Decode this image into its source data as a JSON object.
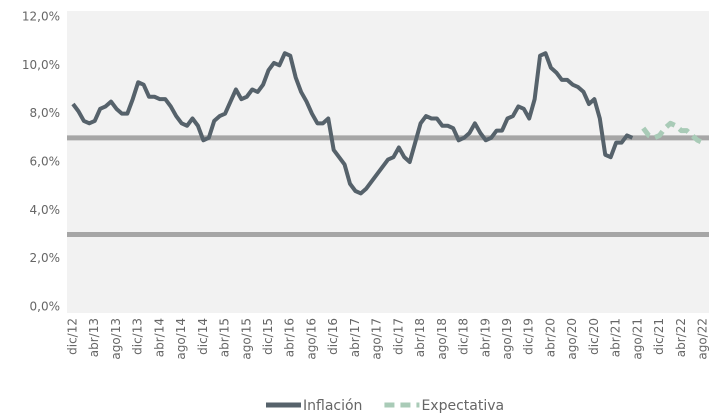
{
  "chart_data": {
    "type": "line",
    "categories": [
      "dic/12",
      null,
      null,
      null,
      "abr/13",
      null,
      null,
      null,
      "ago/13",
      null,
      null,
      null,
      "dic/13",
      null,
      null,
      null,
      "abr/14",
      null,
      null,
      null,
      "ago/14",
      null,
      null,
      null,
      "dic/14",
      null,
      null,
      null,
      "abr/15",
      null,
      null,
      null,
      "ago/15",
      null,
      null,
      null,
      "dic/15",
      null,
      null,
      null,
      "abr/16",
      null,
      null,
      null,
      "ago/16",
      null,
      null,
      null,
      "dic/16",
      null,
      null,
      null,
      "abr/17",
      null,
      null,
      null,
      "ago/17",
      null,
      null,
      null,
      "dic/17",
      null,
      null,
      null,
      "abr/18",
      null,
      null,
      null,
      "ago/18",
      null,
      null,
      null,
      "dic/18",
      null,
      null,
      null,
      "abr/19",
      null,
      null,
      null,
      "ago/19",
      null,
      null,
      null,
      "dic/19",
      null,
      null,
      null,
      "abr/20",
      null,
      null,
      null,
      "ago/20",
      null,
      null,
      null,
      "dic/20",
      null,
      null,
      null,
      "abr/21",
      null,
      null,
      null,
      "ago/21",
      null,
      null,
      null,
      "dic/21",
      null,
      null,
      null,
      "abr/22",
      null,
      null,
      null,
      "ago/22"
    ],
    "series": [
      {
        "name": "Inflación",
        "color": "#56626b",
        "dashed": false,
        "values": [
          8.4,
          8.1,
          7.7,
          7.6,
          7.7,
          8.2,
          8.3,
          8.5,
          8.2,
          8.0,
          8.0,
          8.6,
          9.3,
          9.2,
          8.7,
          8.7,
          8.6,
          8.6,
          8.3,
          7.9,
          7.6,
          7.5,
          7.8,
          7.5,
          6.9,
          7.0,
          7.7,
          7.9,
          8.0,
          8.5,
          9.0,
          8.6,
          8.7,
          9.0,
          8.9,
          9.2,
          9.8,
          10.1,
          10.0,
          10.5,
          10.4,
          9.5,
          8.9,
          8.5,
          8.0,
          7.6,
          7.6,
          7.8,
          6.5,
          6.2,
          5.9,
          5.1,
          4.8,
          4.7,
          4.9,
          5.2,
          5.5,
          5.8,
          6.1,
          6.2,
          6.6,
          6.2,
          6.0,
          6.8,
          7.6,
          7.9,
          7.8,
          7.8,
          7.5,
          7.5,
          7.4,
          6.9,
          7.0,
          7.2,
          7.6,
          7.2,
          6.9,
          7.0,
          7.3,
          7.3,
          7.8,
          7.9,
          8.3,
          8.2,
          7.8,
          8.6,
          10.4,
          10.5,
          9.9,
          9.7,
          9.4,
          9.4,
          9.2,
          9.1,
          8.9,
          8.4,
          8.6,
          7.8,
          6.3,
          6.2,
          6.8,
          6.8,
          7.1,
          7.0,
          null,
          null,
          null,
          null,
          null,
          null,
          null,
          null,
          null,
          null,
          null,
          null,
          null
        ]
      },
      {
        "name": "Expectativa",
        "color": "#a9cbb7",
        "dashed": true,
        "values": [
          null,
          null,
          null,
          null,
          null,
          null,
          null,
          null,
          null,
          null,
          null,
          null,
          null,
          null,
          null,
          null,
          null,
          null,
          null,
          null,
          null,
          null,
          null,
          null,
          null,
          null,
          null,
          null,
          null,
          null,
          null,
          null,
          null,
          null,
          null,
          null,
          null,
          null,
          null,
          null,
          null,
          null,
          null,
          null,
          null,
          null,
          null,
          null,
          null,
          null,
          null,
          null,
          null,
          null,
          null,
          null,
          null,
          null,
          null,
          null,
          null,
          null,
          null,
          null,
          null,
          null,
          null,
          null,
          null,
          null,
          null,
          null,
          null,
          null,
          null,
          null,
          null,
          null,
          null,
          null,
          null,
          null,
          null,
          null,
          null,
          null,
          null,
          null,
          null,
          null,
          null,
          null,
          null,
          null,
          null,
          null,
          null,
          null,
          null,
          null,
          null,
          null,
          null,
          null,
          null,
          7.4,
          7.1,
          7.0,
          7.1,
          7.4,
          7.6,
          7.5,
          7.3,
          7.3,
          7.1,
          6.9,
          6.8
        ]
      }
    ],
    "reference_lines": [
      {
        "value": 7,
        "color": "#a6a6a6"
      },
      {
        "value": 3,
        "color": "#a6a6a6"
      }
    ],
    "ylim": [
      0,
      12
    ],
    "yticks": [
      {
        "value": 0,
        "label": "0,0%"
      },
      {
        "value": 2,
        "label": "2,0%"
      },
      {
        "value": 4,
        "label": "4,0%"
      },
      {
        "value": 6,
        "label": "6,0%"
      },
      {
        "value": 8,
        "label": "8,0%"
      },
      {
        "value": 10,
        "label": "10,0%"
      },
      {
        "value": 12,
        "label": "12,0%"
      }
    ],
    "grid": false,
    "plot_background": "#f2f2f2",
    "legend": "bottom"
  }
}
